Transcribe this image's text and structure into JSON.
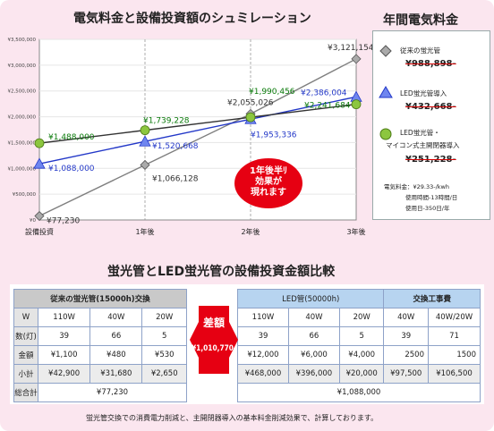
{
  "chart_title": "電気料金と設備投資額のシュミレーション",
  "annual_title": "年間電気料金",
  "chart_data": {
    "type": "line",
    "categories": [
      "設備投資",
      "1年後",
      "2年後",
      "3年後"
    ],
    "ylim": [
      0,
      3500000
    ],
    "yticks": [
      "¥0",
      "¥500,000",
      "¥1,000,000",
      "¥1,500,000",
      "¥2,000,000",
      "¥2,500,000",
      "¥3,000,000",
      "¥3,500,000"
    ],
    "series": [
      {
        "name": "従来の蛍光管",
        "values": [
          77230,
          1066128,
          2055026,
          3121154
        ],
        "labels": [
          "¥77,230",
          "¥1,066,128",
          "¥2,055,026",
          "¥3,121,154"
        ],
        "color": "#7f7f7f",
        "marker": "diamond"
      },
      {
        "name": "LED蛍光管導入",
        "values": [
          1088000,
          1520668,
          1953336,
          2386004
        ],
        "labels": [
          "¥1,088,000",
          "¥1,520,668",
          "¥1,953,336",
          "¥2,386,004"
        ],
        "color": "#2338c8",
        "marker": "triangle"
      },
      {
        "name": "LED蛍光管・マイコン式主開閉器導入",
        "values": [
          1488000,
          1739228,
          1990456,
          2241684
        ],
        "labels": [
          "¥1,488,000",
          "¥1,739,228",
          "¥1,990,456",
          "¥2,241,684"
        ],
        "color": "#333333",
        "marker": "circle"
      }
    ],
    "callout": [
      "1年後半ﾘ",
      "効果が",
      "現れます"
    ]
  },
  "legend": {
    "items": [
      {
        "label": "従来の蛍光管",
        "value": "¥988,898-"
      },
      {
        "label": "LED蛍光管導入",
        "value": "¥432,668-"
      },
      {
        "label": "LED蛍光管・",
        "label2": "マイコン式主開閉器導入",
        "value": "¥251,228-"
      }
    ],
    "note1": "電気料金：¥29.33-/kwh",
    "note2": "使用時間-13時間/日",
    "note3": "使用日-350日/年"
  },
  "section_title": "蛍光管とLED蛍光管の設備投資金額比較",
  "table": {
    "left_header": "従来の蛍光管(15000h)交換",
    "right_header1": "LED管(50000h)",
    "right_header2": "交換工事費",
    "row_labels": [
      "W",
      "数(灯)",
      "金額",
      "小計",
      "総合計"
    ],
    "left_cols": [
      "110W",
      "40W",
      "20W"
    ],
    "left_counts": [
      "39",
      "66",
      "5"
    ],
    "left_prices": [
      "¥1,100",
      "¥480",
      "¥530"
    ],
    "left_subtotals": [
      "¥42,900",
      "¥31,680",
      "¥2,650"
    ],
    "left_total": "¥77,230",
    "right_cols": [
      "110W",
      "40W",
      "20W",
      "40W",
      "40W/20W"
    ],
    "right_counts": [
      "39",
      "66",
      "5",
      "39",
      "71"
    ],
    "right_prices": [
      "¥12,000",
      "¥6,000",
      "¥4,000",
      "2500",
      "1500"
    ],
    "right_subtotals": [
      "¥468,000",
      "¥396,000",
      "¥20,000",
      "¥97,500",
      "¥106,500"
    ],
    "right_total": "¥1,088,000",
    "diff_label": "差額",
    "diff_value": "¥1,010,770-"
  },
  "footer": "蛍光管交換での消費電力削減と、主開閉器導入の基本料金削減効果で、計算しております。"
}
